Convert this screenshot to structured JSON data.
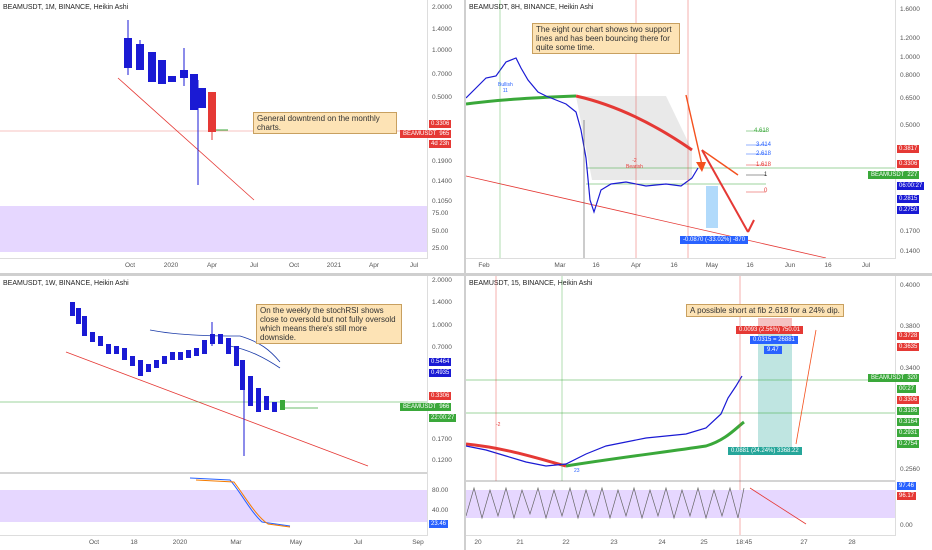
{
  "colors": {
    "up": "#1a1ad4",
    "down": "#e53935",
    "trend": "#e53935",
    "support": "#3aa83a",
    "band": "#e6d7ff",
    "blue": "#2962ff",
    "note_bg": "#fde3b5"
  },
  "p1": {
    "title": "BEAMUSDT, 1M, BINANCE, Heikin Ashi",
    "note": "General downtrend on the monthly charts.",
    "ticks": [
      "2.0000",
      "1.4000",
      "1.0000",
      "0.7000",
      "0.5000",
      "0.3306",
      "0.2965",
      "4d 23h",
      "0.1900",
      "0.1400",
      "0.1050",
      "75.00",
      "50.00",
      "25.00"
    ],
    "xticks": [
      "Oct",
      "2020",
      "Apr",
      "Jul",
      "Oct",
      "2021",
      "Apr",
      "Jul"
    ],
    "symbol_tag": "BEAMUSDT"
  },
  "p2": {
    "title": "BEAMUSDT, 8H, BINANCE, Heikin Ashi",
    "note": "The eight our chart shows two support lines and has been bouncing there for quite some time.",
    "ticks": [
      "1.6000",
      "1.2000",
      "1.0000",
      "0.8000",
      "0.6500",
      "0.5000",
      "0.3817",
      "0.3306",
      "0.3227",
      "06:00:27",
      "0.2815",
      "0.2750",
      "0.1700",
      "0.1400"
    ],
    "xticks": [
      "Feb",
      "Mar",
      "16",
      "Apr",
      "16",
      "May",
      "16",
      "Jun",
      "16",
      "Jul"
    ],
    "fib": [
      "4.618",
      "3.414",
      "2.618",
      "1.618",
      "1",
      "0"
    ],
    "measure": "-0.0870 (-33.02%) -870",
    "bullish": "Bullish",
    "bullish_num": "11",
    "bearish": "Bearish",
    "bearish_num": "-2",
    "symbol_tag": "BEAMUSDT"
  },
  "p3": {
    "title": "BEAMUSDT, 1W, BINANCE, Heikin Ashi",
    "note": "On the weekly the stochRSI shows close to oversold but not fully oversold which means there's still more downside.",
    "ticks": [
      "2.0000",
      "1.4000",
      "1.0000",
      "0.7000",
      "0.5464",
      "0.4935",
      "0.3306",
      "0.2966",
      "22:00:27",
      "0.1700",
      "0.1200",
      "80.00",
      "40.00",
      "23.46"
    ],
    "xticks": [
      "Oct",
      "18",
      "2020",
      "Mar",
      "May",
      "Jul",
      "Sep"
    ],
    "symbol_tag": "BEAMUSDT"
  },
  "p4": {
    "title": "BEAMUSDT, 15, BINANCE, Heikin Ashi",
    "note": "A possible short at fib 2.618 for a 24% dip.",
    "ticks": [
      "0.4000",
      "0.3800",
      "0.3728",
      "0.3635",
      "0.3400",
      "0.3320",
      "00:27",
      "0.3306",
      "0.3186",
      "0.3164",
      "0.2931",
      "0.2754",
      "0.2560",
      "97.46",
      "96.17",
      "0.00"
    ],
    "xticks": [
      "20",
      "21",
      "22",
      "23",
      "24",
      "25",
      "18:45",
      "27",
      "28"
    ],
    "box_top": "0.0093 (2.56%) 750.01",
    "box_mid1": "0.0315 = 26881",
    "box_mid2": "9.47",
    "box_bottom": "0.0881 (24.24%) 3368.22",
    "symbol_tag": "BEAMUSDT",
    "marker_left": "-2",
    "marker_mid": "23"
  }
}
